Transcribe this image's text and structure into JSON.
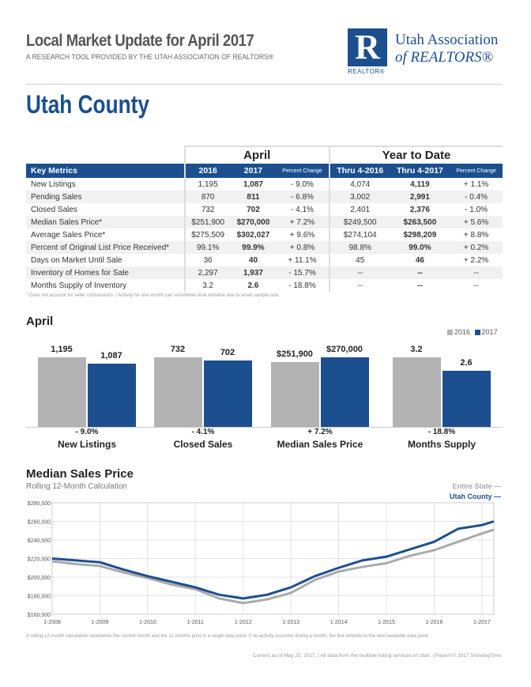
{
  "header": {
    "title": "Local Market Update for April 2017",
    "subtitle": "A RESEARCH TOOL PROVIDED BY THE UTAH ASSOCIATION OF REALTORS®",
    "logo": {
      "letter": "R",
      "brand": "REALTOR®",
      "name1": "Utah Association",
      "name2": "of REALTORS®"
    }
  },
  "area": "Utah County",
  "table": {
    "group1": "April",
    "group2": "Year to Date",
    "columns": [
      "Key Metrics",
      "2016",
      "2017",
      "Percent Change",
      "Thru 4-2016",
      "Thru 4-2017",
      "Percent Change"
    ],
    "rows": [
      [
        "New Listings",
        "1,195",
        "1,087",
        "- 9.0%",
        "4,074",
        "4,119",
        "+ 1.1%"
      ],
      [
        "Pending Sales",
        "870",
        "811",
        "- 6.8%",
        "3,002",
        "2,991",
        "- 0.4%"
      ],
      [
        "Closed Sales",
        "732",
        "702",
        "- 4.1%",
        "2,401",
        "2,376",
        "- 1.0%"
      ],
      [
        "Median Sales Price*",
        "$251,900",
        "$270,000",
        "+ 7.2%",
        "$249,500",
        "$263,500",
        "+ 5.6%"
      ],
      [
        "Average Sales Price*",
        "$275,509",
        "$302,027",
        "+ 9.6%",
        "$274,104",
        "$298,209",
        "+ 8.8%"
      ],
      [
        "Percent of Original List Price Received*",
        "99.1%",
        "99.9%",
        "+ 0.8%",
        "98.8%",
        "99.0%",
        "+ 0.2%"
      ],
      [
        "Days on Market Until Sale",
        "36",
        "40",
        "+ 11.1%",
        "45",
        "46",
        "+ 2.2%"
      ],
      [
        "Inventory of Homes for Sale",
        "2,297",
        "1,937",
        "- 15.7%",
        "--",
        "--",
        "--"
      ],
      [
        "Months Supply of Inventory",
        "3.2",
        "2.6",
        "- 18.8%",
        "--",
        "--",
        "--"
      ]
    ],
    "note": "* Does not account for seller concessions.  |  Activity for one month can sometimes look extreme due to small sample size."
  },
  "chart_data": [
    {
      "type": "bar",
      "title": "April",
      "legend": [
        "2016",
        "2017"
      ],
      "legend_position": "top-right",
      "colors": {
        "2016": "#b3b3b3",
        "2017": "#1b4f8f"
      },
      "categories": [
        "New Listings",
        "Closed Sales",
        "Median Sales Price",
        "Months Supply"
      ],
      "series": [
        {
          "name": "2016",
          "values": [
            1195,
            732,
            251900,
            3.2
          ],
          "labels": [
            "1,195",
            "732",
            "$251,900",
            "3.2"
          ]
        },
        {
          "name": "2017",
          "values": [
            1087,
            702,
            270000,
            2.6
          ],
          "labels": [
            "1,087",
            "702",
            "$270,000",
            "2.6"
          ]
        }
      ],
      "changes": [
        "- 9.0%",
        "- 4.1%",
        "+ 7.2%",
        "- 18.8%"
      ]
    },
    {
      "type": "line",
      "title": "Median Sales Price",
      "subtitle": "Rolling 12-Month Calculation",
      "ylim": [
        160000,
        280000
      ],
      "yticks": [
        "$160,000",
        "$180,000",
        "$200,000",
        "$220,000",
        "$240,000",
        "$260,000",
        "$280,000"
      ],
      "xticks": [
        "1-2008",
        "1-2009",
        "1-2010",
        "1-2011",
        "1-2012",
        "1-2013",
        "1-2014",
        "1-2015",
        "1-2016",
        "1-2017"
      ],
      "x": [
        "2008-01",
        "2008-07",
        "2009-01",
        "2009-07",
        "2010-01",
        "2010-07",
        "2011-01",
        "2011-07",
        "2012-01",
        "2012-07",
        "2013-01",
        "2013-07",
        "2014-01",
        "2014-07",
        "2015-01",
        "2015-07",
        "2016-01",
        "2016-07",
        "2017-01",
        "2017-04"
      ],
      "series": [
        {
          "name": "Entire State",
          "color": "#aaaaaa",
          "values": [
            217000,
            214000,
            212000,
            205000,
            199000,
            192000,
            187000,
            177000,
            172000,
            176000,
            183000,
            197000,
            206000,
            211000,
            215000,
            223000,
            229000,
            238000,
            247000,
            251000
          ]
        },
        {
          "name": "Utah County",
          "color": "#1b4f8f",
          "values": [
            220000,
            218000,
            216000,
            208000,
            201000,
            195000,
            189000,
            181000,
            177000,
            181000,
            189000,
            201000,
            210000,
            218000,
            222000,
            230000,
            238000,
            252000,
            256000,
            260000
          ]
        }
      ],
      "note": "A rolling 12-month calculation represents the current month and the 11 months prior in a single data point. If no activity occurred during a month, the line extends to the next available data point."
    }
  ],
  "footer": "Current as of May 25, 2017.  |  All data from the multiple listing services of Utah.  |  Report © 2017 ShowingTime."
}
